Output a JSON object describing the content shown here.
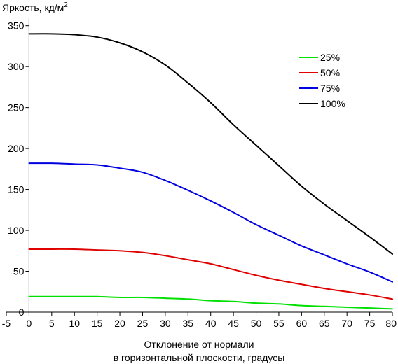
{
  "chart_data": {
    "type": "line",
    "title": "",
    "ylabel": "Яркость, кд/м",
    "ylabel_sup": "2",
    "xlabel_line1": "Отклонение от нормали",
    "xlabel_line2": "в горизонтальной плоскости, градусы",
    "xlim": [
      -5,
      80
    ],
    "ylim": [
      0,
      360
    ],
    "xticks": [
      -5,
      0,
      5,
      10,
      15,
      20,
      25,
      30,
      35,
      40,
      45,
      50,
      55,
      60,
      65,
      70,
      75,
      80
    ],
    "yticks": [
      0,
      50,
      100,
      150,
      200,
      250,
      300,
      350
    ],
    "grid": false,
    "legend_position": "top-right",
    "x": [
      0,
      5,
      10,
      15,
      20,
      25,
      30,
      35,
      40,
      45,
      50,
      55,
      60,
      65,
      70,
      75,
      80
    ],
    "series": [
      {
        "name": "25%",
        "color": "#00e000",
        "values": [
          19,
          19,
          19,
          19,
          18,
          18,
          17,
          16,
          14,
          13,
          11,
          10,
          8,
          7,
          6,
          5,
          4
        ]
      },
      {
        "name": "50%",
        "color": "#e00000",
        "values": [
          77,
          77,
          77,
          76,
          75,
          73,
          69,
          64,
          59,
          52,
          45,
          39,
          34,
          29,
          25,
          21,
          16
        ]
      },
      {
        "name": "75%",
        "color": "#0000e0",
        "values": [
          182,
          182,
          181,
          180,
          176,
          171,
          161,
          149,
          136,
          122,
          107,
          94,
          81,
          70,
          59,
          49,
          37
        ]
      },
      {
        "name": "100%",
        "color": "#000000",
        "values": [
          340,
          340,
          339,
          336,
          329,
          318,
          302,
          280,
          256,
          229,
          204,
          179,
          154,
          132,
          112,
          92,
          71
        ]
      }
    ]
  }
}
